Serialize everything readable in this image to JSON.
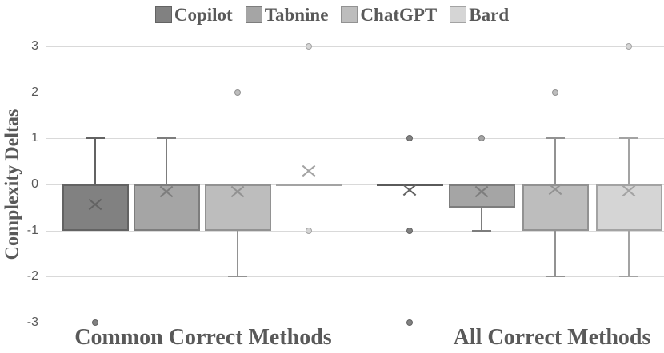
{
  "colors": {
    "text": "#595959",
    "grid": "#d9d9d9",
    "background": "#ffffff"
  },
  "chart_data": {
    "type": "boxplot",
    "title": "",
    "ylabel": "Complexity Deltas",
    "xlabel": "",
    "ylim": [
      -3,
      3
    ],
    "yticks": [
      3,
      2,
      1,
      0,
      -1,
      -2,
      -3
    ],
    "grid": true,
    "legend_position": "top",
    "categories": [
      "Common Correct Methods",
      "All Correct Methods"
    ],
    "series": [
      {
        "name": "Copilot",
        "color": "#818181",
        "stroke": "#636363",
        "boxes": [
          {
            "category": "Common Correct Methods",
            "whisker_low": -1,
            "q1": -1,
            "median": 0,
            "q3": 0,
            "whisker_high": 1,
            "mean": -0.43,
            "outliers": [
              -3
            ]
          },
          {
            "category": "All Correct Methods",
            "whisker_low": 0,
            "q1": 0,
            "median": 0,
            "q3": 0,
            "whisker_high": 0,
            "mean": -0.13,
            "outliers": [
              1,
              -1,
              -3
            ]
          }
        ]
      },
      {
        "name": "Tabnine",
        "color": "#a5a5a5",
        "stroke": "#7d7d7d",
        "boxes": [
          {
            "category": "Common Correct Methods",
            "whisker_low": -1,
            "q1": -1,
            "median": 0,
            "q3": 0,
            "whisker_high": 1,
            "mean": -0.15,
            "outliers": []
          },
          {
            "category": "All Correct Methods",
            "whisker_low": -1,
            "q1": -0.5,
            "median": 0,
            "q3": 0,
            "whisker_high": 0,
            "mean": -0.16,
            "outliers": [
              1
            ]
          }
        ]
      },
      {
        "name": "ChatGPT",
        "color": "#bdbdbd",
        "stroke": "#929292",
        "boxes": [
          {
            "category": "Common Correct Methods",
            "whisker_low": -2,
            "q1": -1,
            "median": 0,
            "q3": 0,
            "whisker_high": 0,
            "mean": -0.15,
            "outliers": [
              2
            ]
          },
          {
            "category": "All Correct Methods",
            "whisker_low": -2,
            "q1": -1,
            "median": 0,
            "q3": 0,
            "whisker_high": 1,
            "mean": -0.11,
            "outliers": [
              2
            ]
          }
        ]
      },
      {
        "name": "Bard",
        "color": "#d5d5d5",
        "stroke": "#a3a3a3",
        "boxes": [
          {
            "category": "Common Correct Methods",
            "whisker_low": 0,
            "q1": 0,
            "median": 0,
            "q3": 0,
            "whisker_high": 0,
            "mean": 0.3,
            "outliers": [
              3,
              -1
            ]
          },
          {
            "category": "All Correct Methods",
            "whisker_low": -2,
            "q1": -1,
            "median": 0,
            "q3": 0,
            "whisker_high": 1,
            "mean": -0.14,
            "outliers": [
              3
            ]
          }
        ]
      }
    ]
  }
}
